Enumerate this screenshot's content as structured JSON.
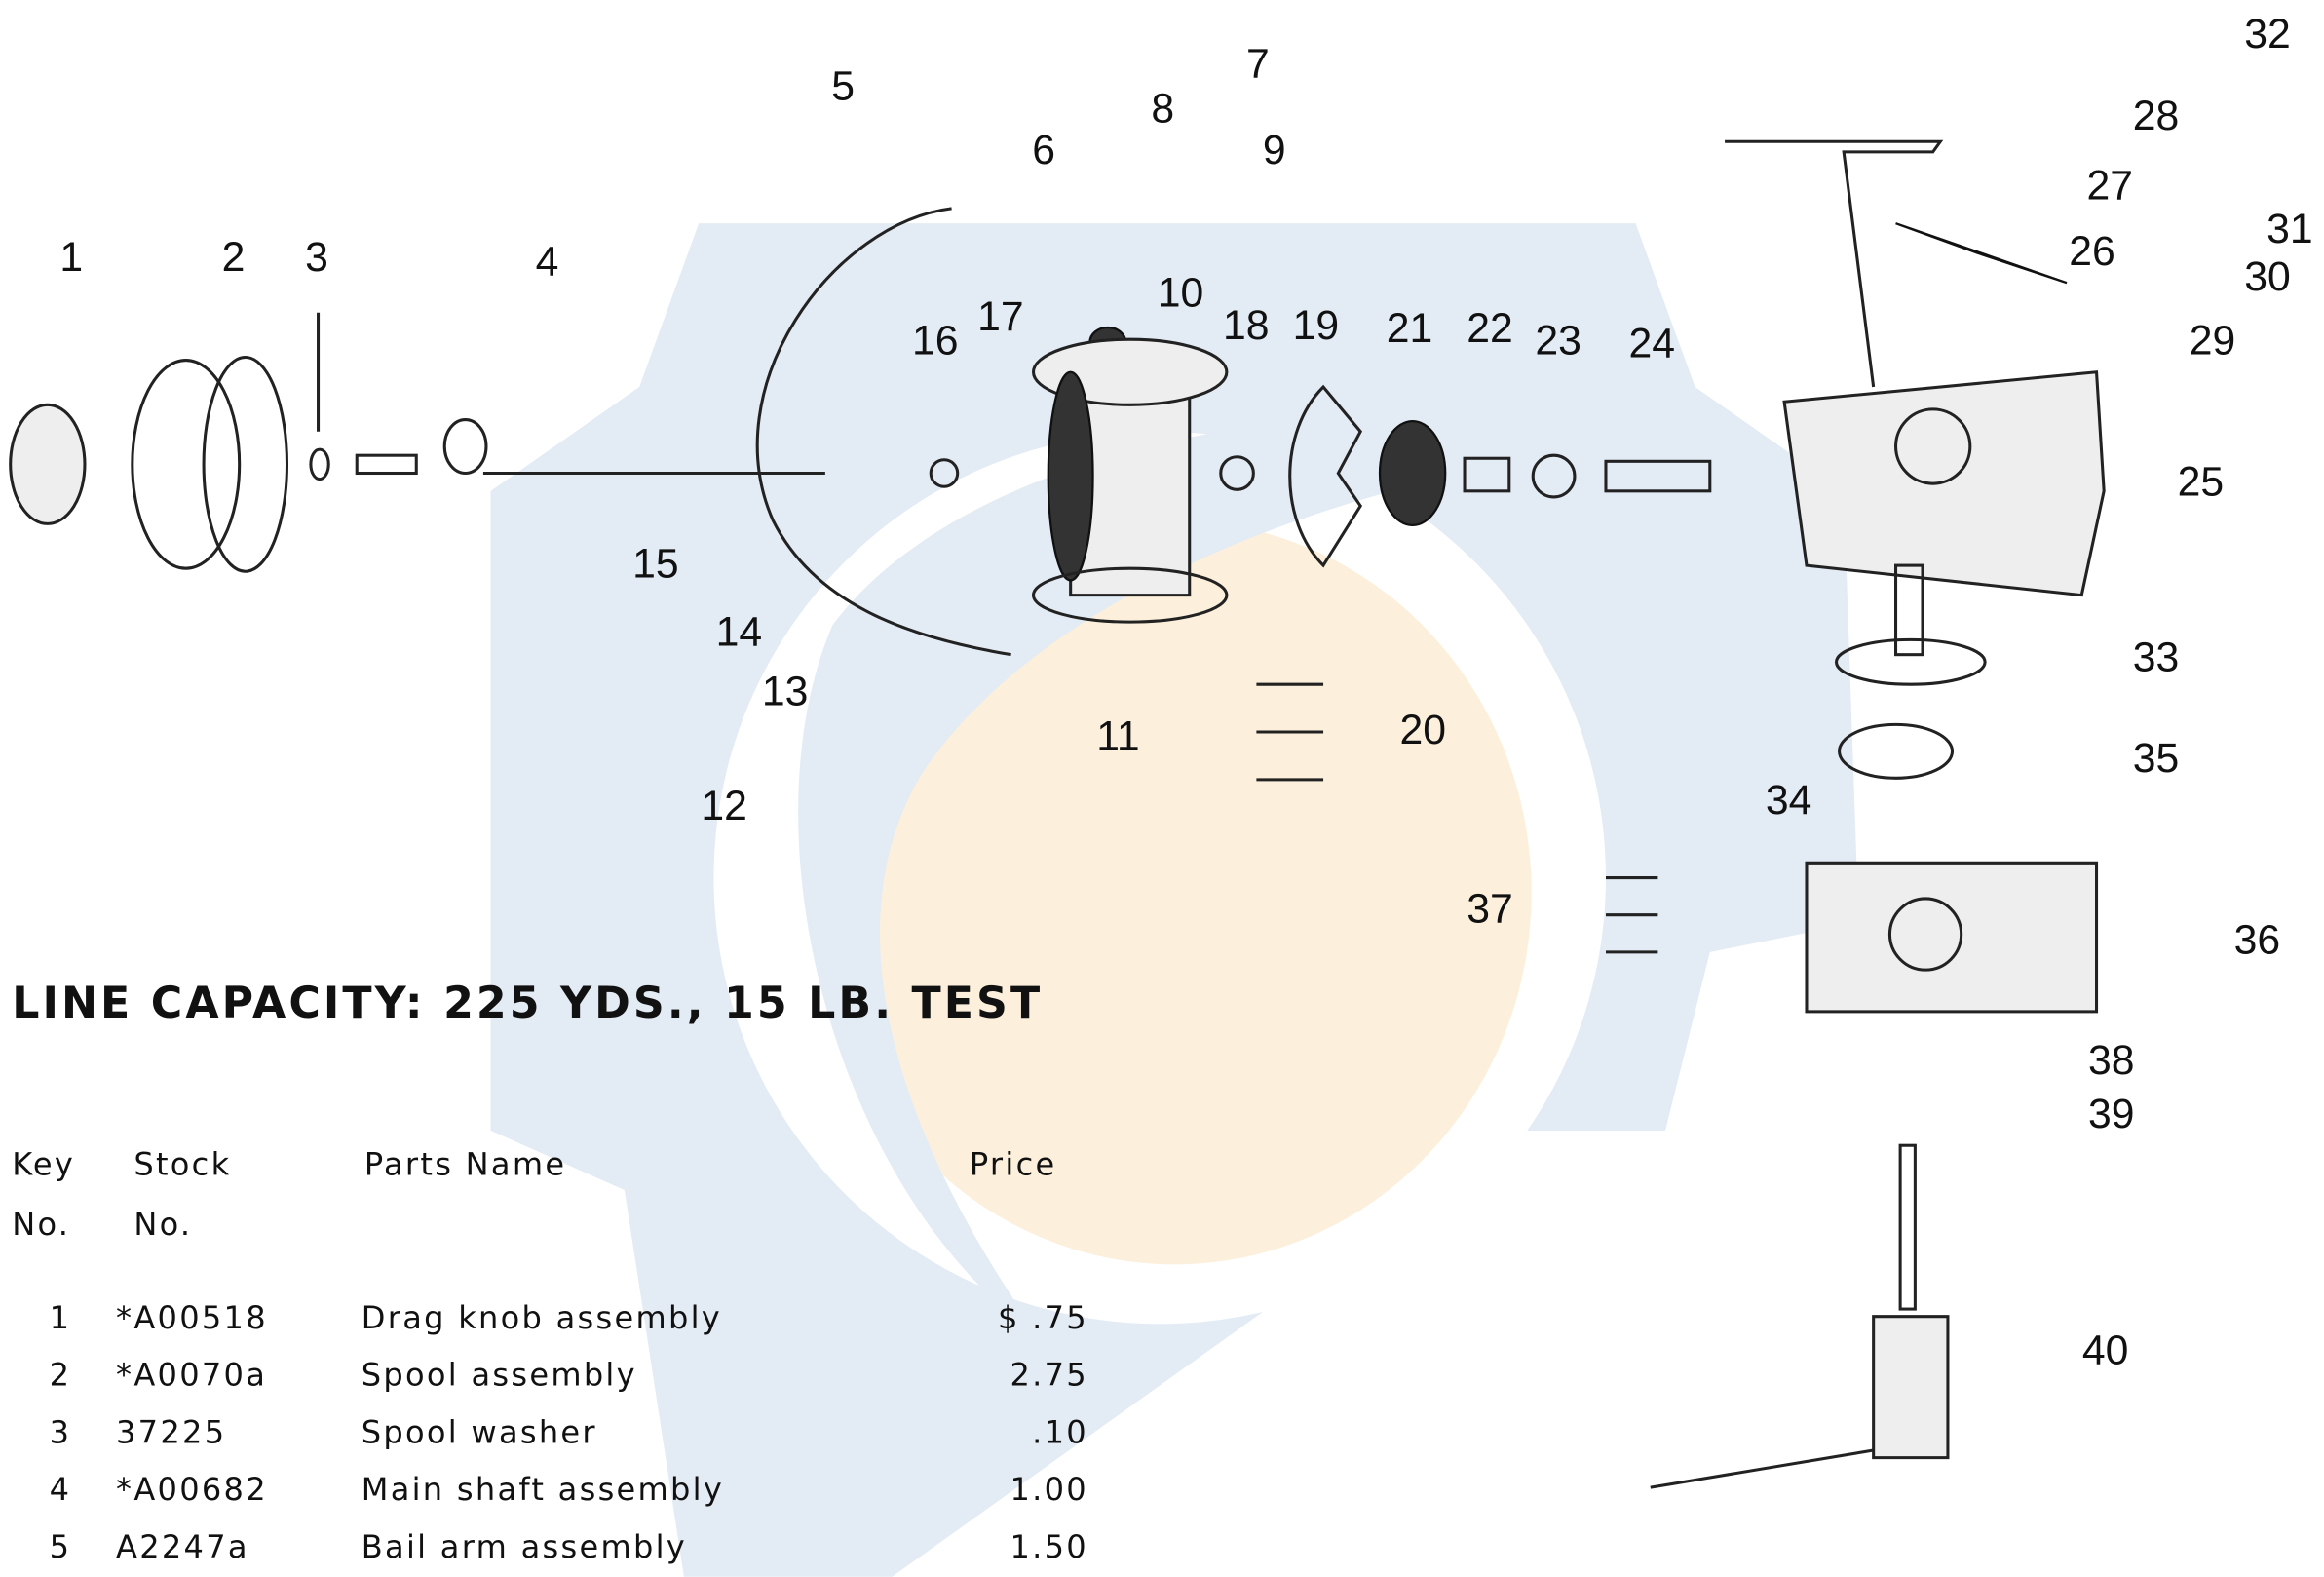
{
  "diagram": {
    "callouts": [
      "1",
      "2",
      "3",
      "4",
      "5",
      "6",
      "7",
      "8",
      "9",
      "10",
      "11",
      "12",
      "13",
      "14",
      "15",
      "16",
      "17",
      "18",
      "19",
      "20",
      "21",
      "22",
      "23",
      "24",
      "25",
      "26",
      "27",
      "28",
      "29",
      "30",
      "31",
      "32",
      "33",
      "34",
      "35",
      "36",
      "37",
      "38",
      "39",
      "40"
    ],
    "line_capacity": "LINE CAPACITY:  225 YDS., 15 LB. TEST"
  },
  "table": {
    "headers": [
      [
        "Key",
        "No."
      ],
      [
        "Stock",
        "No."
      ],
      [
        "Parts Name"
      ],
      [
        "Price"
      ]
    ],
    "rows": [
      [
        "1",
        "*A00518",
        "Drag knob assembly",
        "$ .75"
      ],
      [
        "2",
        "*A0070a",
        "Spool assembly",
        "2.75"
      ],
      [
        "3",
        "37225",
        "Spool washer",
        ".10"
      ],
      [
        "4",
        "*A00682",
        "Main shaft assembly",
        "1.00"
      ],
      [
        "5",
        "A2247a",
        "Bail arm assembly",
        "1.50"
      ]
    ]
  }
}
